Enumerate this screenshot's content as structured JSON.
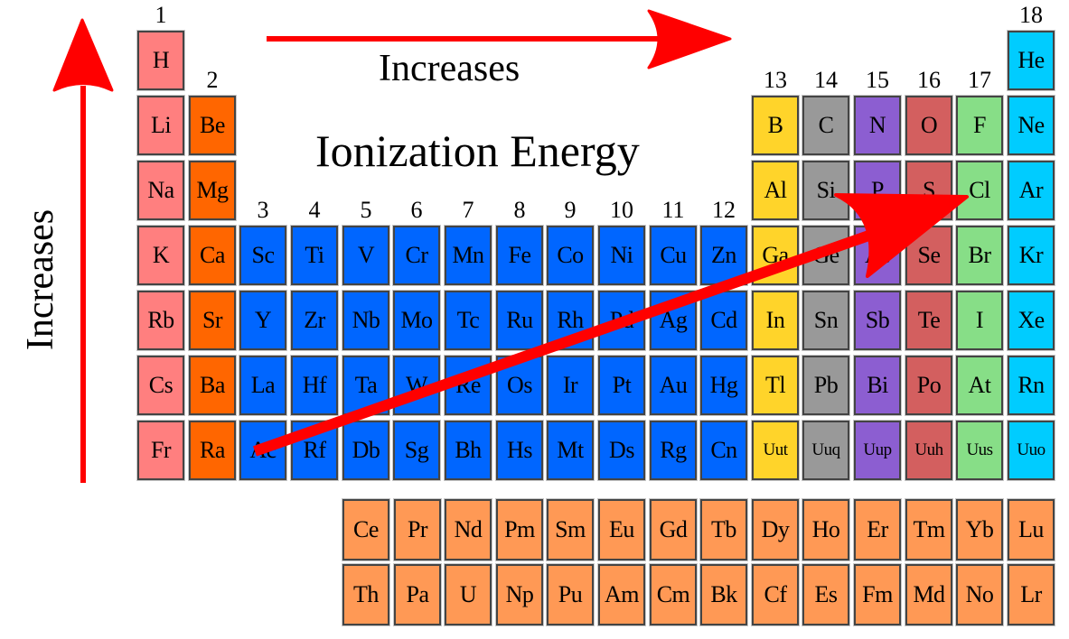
{
  "title": "Ionization Energy",
  "annotations": {
    "horizontal_label": "Increases",
    "vertical_label": "Increases"
  },
  "colors": {
    "alkali": "#ff7f7f",
    "alkaline_earth": "#ff6600",
    "transition": "#0066ff",
    "group13": "#ffd42a",
    "group14": "#999999",
    "group15": "#8c5ed1",
    "group16": "#d35f5f",
    "group17": "#87de87",
    "noble": "#00ccff",
    "f_block": "#ff9955",
    "arrow": "#ff0000"
  },
  "group_numbers": [
    "1",
    "2",
    "3",
    "4",
    "5",
    "6",
    "7",
    "8",
    "9",
    "10",
    "11",
    "12",
    "13",
    "14",
    "15",
    "16",
    "17",
    "18"
  ],
  "main_table": [
    {
      "symbol": "H",
      "row": 1,
      "col": 1,
      "cat": "alkali"
    },
    {
      "symbol": "He",
      "row": 1,
      "col": 18,
      "cat": "noble"
    },
    {
      "symbol": "Li",
      "row": 2,
      "col": 1,
      "cat": "alkali"
    },
    {
      "symbol": "Be",
      "row": 2,
      "col": 2,
      "cat": "alkaline_earth"
    },
    {
      "symbol": "B",
      "row": 2,
      "col": 13,
      "cat": "group13"
    },
    {
      "symbol": "C",
      "row": 2,
      "col": 14,
      "cat": "group14"
    },
    {
      "symbol": "N",
      "row": 2,
      "col": 15,
      "cat": "group15"
    },
    {
      "symbol": "O",
      "row": 2,
      "col": 16,
      "cat": "group16"
    },
    {
      "symbol": "F",
      "row": 2,
      "col": 17,
      "cat": "group17"
    },
    {
      "symbol": "Ne",
      "row": 2,
      "col": 18,
      "cat": "noble"
    },
    {
      "symbol": "Na",
      "row": 3,
      "col": 1,
      "cat": "alkali"
    },
    {
      "symbol": "Mg",
      "row": 3,
      "col": 2,
      "cat": "alkaline_earth"
    },
    {
      "symbol": "Al",
      "row": 3,
      "col": 13,
      "cat": "group13"
    },
    {
      "symbol": "Si",
      "row": 3,
      "col": 14,
      "cat": "group14"
    },
    {
      "symbol": "P",
      "row": 3,
      "col": 15,
      "cat": "group15"
    },
    {
      "symbol": "S",
      "row": 3,
      "col": 16,
      "cat": "group16"
    },
    {
      "symbol": "Cl",
      "row": 3,
      "col": 17,
      "cat": "group17"
    },
    {
      "symbol": "Ar",
      "row": 3,
      "col": 18,
      "cat": "noble"
    },
    {
      "symbol": "K",
      "row": 4,
      "col": 1,
      "cat": "alkali"
    },
    {
      "symbol": "Ca",
      "row": 4,
      "col": 2,
      "cat": "alkaline_earth"
    },
    {
      "symbol": "Sc",
      "row": 4,
      "col": 3,
      "cat": "transition"
    },
    {
      "symbol": "Ti",
      "row": 4,
      "col": 4,
      "cat": "transition"
    },
    {
      "symbol": "V",
      "row": 4,
      "col": 5,
      "cat": "transition"
    },
    {
      "symbol": "Cr",
      "row": 4,
      "col": 6,
      "cat": "transition"
    },
    {
      "symbol": "Mn",
      "row": 4,
      "col": 7,
      "cat": "transition"
    },
    {
      "symbol": "Fe",
      "row": 4,
      "col": 8,
      "cat": "transition"
    },
    {
      "symbol": "Co",
      "row": 4,
      "col": 9,
      "cat": "transition"
    },
    {
      "symbol": "Ni",
      "row": 4,
      "col": 10,
      "cat": "transition"
    },
    {
      "symbol": "Cu",
      "row": 4,
      "col": 11,
      "cat": "transition"
    },
    {
      "symbol": "Zn",
      "row": 4,
      "col": 12,
      "cat": "transition"
    },
    {
      "symbol": "Ga",
      "row": 4,
      "col": 13,
      "cat": "group13"
    },
    {
      "symbol": "Ge",
      "row": 4,
      "col": 14,
      "cat": "group14"
    },
    {
      "symbol": "As",
      "row": 4,
      "col": 15,
      "cat": "group15"
    },
    {
      "symbol": "Se",
      "row": 4,
      "col": 16,
      "cat": "group16"
    },
    {
      "symbol": "Br",
      "row": 4,
      "col": 17,
      "cat": "group17"
    },
    {
      "symbol": "Kr",
      "row": 4,
      "col": 18,
      "cat": "noble"
    },
    {
      "symbol": "Rb",
      "row": 5,
      "col": 1,
      "cat": "alkali"
    },
    {
      "symbol": "Sr",
      "row": 5,
      "col": 2,
      "cat": "alkaline_earth"
    },
    {
      "symbol": "Y",
      "row": 5,
      "col": 3,
      "cat": "transition"
    },
    {
      "symbol": "Zr",
      "row": 5,
      "col": 4,
      "cat": "transition"
    },
    {
      "symbol": "Nb",
      "row": 5,
      "col": 5,
      "cat": "transition"
    },
    {
      "symbol": "Mo",
      "row": 5,
      "col": 6,
      "cat": "transition"
    },
    {
      "symbol": "Tc",
      "row": 5,
      "col": 7,
      "cat": "transition"
    },
    {
      "symbol": "Ru",
      "row": 5,
      "col": 8,
      "cat": "transition"
    },
    {
      "symbol": "Rh",
      "row": 5,
      "col": 9,
      "cat": "transition"
    },
    {
      "symbol": "Pd",
      "row": 5,
      "col": 10,
      "cat": "transition"
    },
    {
      "symbol": "Ag",
      "row": 5,
      "col": 11,
      "cat": "transition"
    },
    {
      "symbol": "Cd",
      "row": 5,
      "col": 12,
      "cat": "transition"
    },
    {
      "symbol": "In",
      "row": 5,
      "col": 13,
      "cat": "group13"
    },
    {
      "symbol": "Sn",
      "row": 5,
      "col": 14,
      "cat": "group14"
    },
    {
      "symbol": "Sb",
      "row": 5,
      "col": 15,
      "cat": "group15"
    },
    {
      "symbol": "Te",
      "row": 5,
      "col": 16,
      "cat": "group16"
    },
    {
      "symbol": "I",
      "row": 5,
      "col": 17,
      "cat": "group17"
    },
    {
      "symbol": "Xe",
      "row": 5,
      "col": 18,
      "cat": "noble"
    },
    {
      "symbol": "Cs",
      "row": 6,
      "col": 1,
      "cat": "alkali"
    },
    {
      "symbol": "Ba",
      "row": 6,
      "col": 2,
      "cat": "alkaline_earth"
    },
    {
      "symbol": "La",
      "row": 6,
      "col": 3,
      "cat": "transition"
    },
    {
      "symbol": "Hf",
      "row": 6,
      "col": 4,
      "cat": "transition"
    },
    {
      "symbol": "Ta",
      "row": 6,
      "col": 5,
      "cat": "transition"
    },
    {
      "symbol": "W",
      "row": 6,
      "col": 6,
      "cat": "transition"
    },
    {
      "symbol": "Re",
      "row": 6,
      "col": 7,
      "cat": "transition"
    },
    {
      "symbol": "Os",
      "row": 6,
      "col": 8,
      "cat": "transition"
    },
    {
      "symbol": "Ir",
      "row": 6,
      "col": 9,
      "cat": "transition"
    },
    {
      "symbol": "Pt",
      "row": 6,
      "col": 10,
      "cat": "transition"
    },
    {
      "symbol": "Au",
      "row": 6,
      "col": 11,
      "cat": "transition"
    },
    {
      "symbol": "Hg",
      "row": 6,
      "col": 12,
      "cat": "transition"
    },
    {
      "symbol": "Tl",
      "row": 6,
      "col": 13,
      "cat": "group13"
    },
    {
      "symbol": "Pb",
      "row": 6,
      "col": 14,
      "cat": "group14"
    },
    {
      "symbol": "Bi",
      "row": 6,
      "col": 15,
      "cat": "group15"
    },
    {
      "symbol": "Po",
      "row": 6,
      "col": 16,
      "cat": "group16"
    },
    {
      "symbol": "At",
      "row": 6,
      "col": 17,
      "cat": "group17"
    },
    {
      "symbol": "Rn",
      "row": 6,
      "col": 18,
      "cat": "noble"
    },
    {
      "symbol": "Fr",
      "row": 7,
      "col": 1,
      "cat": "alkali"
    },
    {
      "symbol": "Ra",
      "row": 7,
      "col": 2,
      "cat": "alkaline_earth"
    },
    {
      "symbol": "Ac",
      "row": 7,
      "col": 3,
      "cat": "transition"
    },
    {
      "symbol": "Rf",
      "row": 7,
      "col": 4,
      "cat": "transition"
    },
    {
      "symbol": "Db",
      "row": 7,
      "col": 5,
      "cat": "transition"
    },
    {
      "symbol": "Sg",
      "row": 7,
      "col": 6,
      "cat": "transition"
    },
    {
      "symbol": "Bh",
      "row": 7,
      "col": 7,
      "cat": "transition"
    },
    {
      "symbol": "Hs",
      "row": 7,
      "col": 8,
      "cat": "transition"
    },
    {
      "symbol": "Mt",
      "row": 7,
      "col": 9,
      "cat": "transition"
    },
    {
      "symbol": "Ds",
      "row": 7,
      "col": 10,
      "cat": "transition"
    },
    {
      "symbol": "Rg",
      "row": 7,
      "col": 11,
      "cat": "transition"
    },
    {
      "symbol": "Cn",
      "row": 7,
      "col": 12,
      "cat": "transition"
    },
    {
      "symbol": "Uut",
      "row": 7,
      "col": 13,
      "cat": "group13",
      "small": true
    },
    {
      "symbol": "Uuq",
      "row": 7,
      "col": 14,
      "cat": "group14",
      "small": true
    },
    {
      "symbol": "Uup",
      "row": 7,
      "col": 15,
      "cat": "group15",
      "small": true
    },
    {
      "symbol": "Uuh",
      "row": 7,
      "col": 16,
      "cat": "group16",
      "small": true
    },
    {
      "symbol": "Uus",
      "row": 7,
      "col": 17,
      "cat": "group17",
      "small": true
    },
    {
      "symbol": "Uuo",
      "row": 7,
      "col": 18,
      "cat": "noble",
      "small": true
    }
  ],
  "lanthanides": [
    "Ce",
    "Pr",
    "Nd",
    "Pm",
    "Sm",
    "Eu",
    "Gd",
    "Tb",
    "Dy",
    "Ho",
    "Er",
    "Tm",
    "Yb",
    "Lu"
  ],
  "actinides": [
    "Th",
    "Pa",
    "U",
    "Np",
    "Pu",
    "Am",
    "Cm",
    "Bk",
    "Cf",
    "Es",
    "Fm",
    "Md",
    "No",
    "Lr"
  ]
}
